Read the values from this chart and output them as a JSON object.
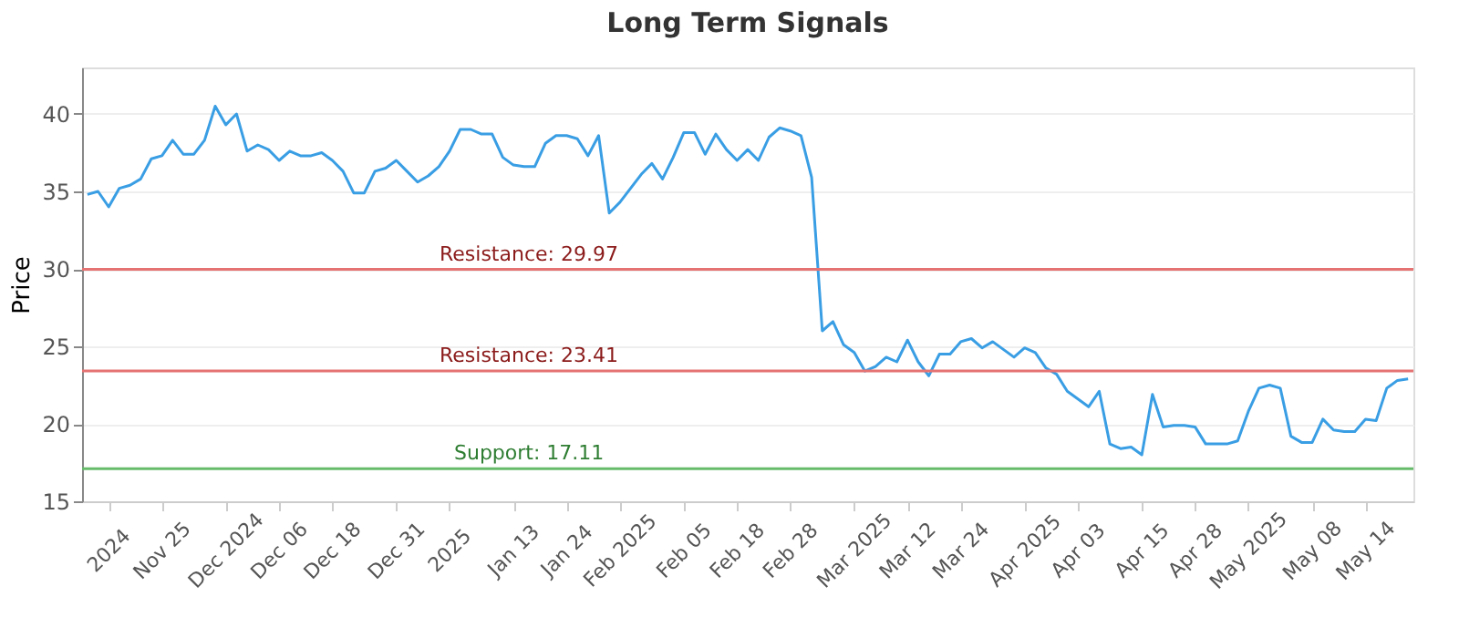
{
  "chart_data": {
    "type": "line",
    "title": "Long Term Signals",
    "ylabel": "Price",
    "categories": [
      null,
      null,
      "2024",
      null,
      null,
      null,
      null,
      "Nov 25",
      null,
      null,
      null,
      null,
      null,
      "Dec 2024",
      null,
      null,
      null,
      null,
      "Dec 06",
      null,
      null,
      null,
      null,
      "Dec 18",
      null,
      null,
      null,
      null,
      null,
      "Dec 31",
      null,
      null,
      null,
      null,
      "2025",
      null,
      null,
      null,
      null,
      null,
      "Jan 13",
      null,
      null,
      null,
      null,
      "Jan 24",
      null,
      null,
      null,
      null,
      "Feb 2025",
      null,
      null,
      null,
      null,
      null,
      "Feb 05",
      null,
      null,
      null,
      null,
      "Feb 18",
      null,
      null,
      null,
      null,
      "Feb 28",
      null,
      null,
      null,
      null,
      null,
      "Mar 2025",
      null,
      null,
      null,
      null,
      "Mar 12",
      null,
      null,
      null,
      null,
      "Mar 24",
      null,
      null,
      null,
      null,
      null,
      "Apr 2025",
      null,
      null,
      null,
      null,
      "Apr 03",
      null,
      null,
      null,
      null,
      null,
      "Apr 15",
      null,
      null,
      null,
      null,
      "Apr 28",
      null,
      null,
      null,
      null,
      "May 2025",
      null,
      null,
      null,
      null,
      null,
      "May 08",
      null,
      null,
      null,
      null,
      "May 14",
      null,
      null,
      null,
      null
    ],
    "series": [
      {
        "color": "#3a9ee4",
        "values": [
          34.8,
          35.0,
          34.0,
          35.2,
          35.4,
          35.8,
          37.1,
          37.3,
          38.3,
          37.4,
          37.4,
          38.3,
          40.5,
          39.3,
          40.0,
          37.6,
          38.0,
          37.7,
          37.0,
          37.6,
          37.3,
          37.3,
          37.5,
          37.0,
          36.3,
          34.9,
          34.9,
          36.3,
          36.5,
          37.0,
          36.3,
          35.6,
          36.0,
          36.6,
          37.6,
          39.0,
          39.0,
          38.7,
          38.7,
          37.2,
          36.7,
          36.6,
          36.6,
          38.1,
          38.6,
          38.6,
          38.4,
          37.3,
          38.6,
          33.6,
          34.3,
          35.2,
          36.1,
          36.8,
          35.8,
          37.2,
          38.8,
          38.8,
          37.4,
          38.7,
          37.7,
          37.0,
          37.7,
          37.0,
          38.5,
          39.1,
          38.9,
          38.6,
          35.9,
          26.0,
          26.6,
          25.1,
          24.6,
          23.4,
          23.7,
          24.3,
          24.0,
          25.4,
          24.0,
          23.1,
          24.5,
          24.5,
          25.3,
          25.5,
          24.9,
          25.3,
          24.8,
          24.3,
          24.9,
          24.6,
          23.6,
          23.2,
          22.1,
          21.6,
          21.1,
          22.1,
          18.7,
          18.4,
          18.5,
          18.0,
          21.9,
          19.8,
          19.9,
          19.9,
          19.8,
          18.7,
          18.7,
          18.7,
          18.9,
          20.8,
          22.3,
          22.5,
          22.3,
          19.2,
          18.8,
          18.8,
          20.3,
          19.6,
          19.5,
          19.5,
          20.3,
          20.2,
          22.3,
          22.8,
          22.9
        ]
      }
    ],
    "ylim": [
      15,
      43
    ],
    "yticks": [
      15,
      20,
      25,
      30,
      35,
      40
    ],
    "grid": "y",
    "legend": false,
    "marker": "none",
    "line_style": "solid",
    "ref_lines": [
      {
        "axis": "y",
        "value": 29.97,
        "label": "Resistance: 29.97",
        "color": "#e57373"
      },
      {
        "axis": "y",
        "value": 23.41,
        "label": "Resistance: 23.41",
        "color": "#e57373"
      },
      {
        "axis": "y",
        "value": 17.11,
        "label": "Support: 17.11",
        "color": "#66bb6a"
      }
    ]
  }
}
